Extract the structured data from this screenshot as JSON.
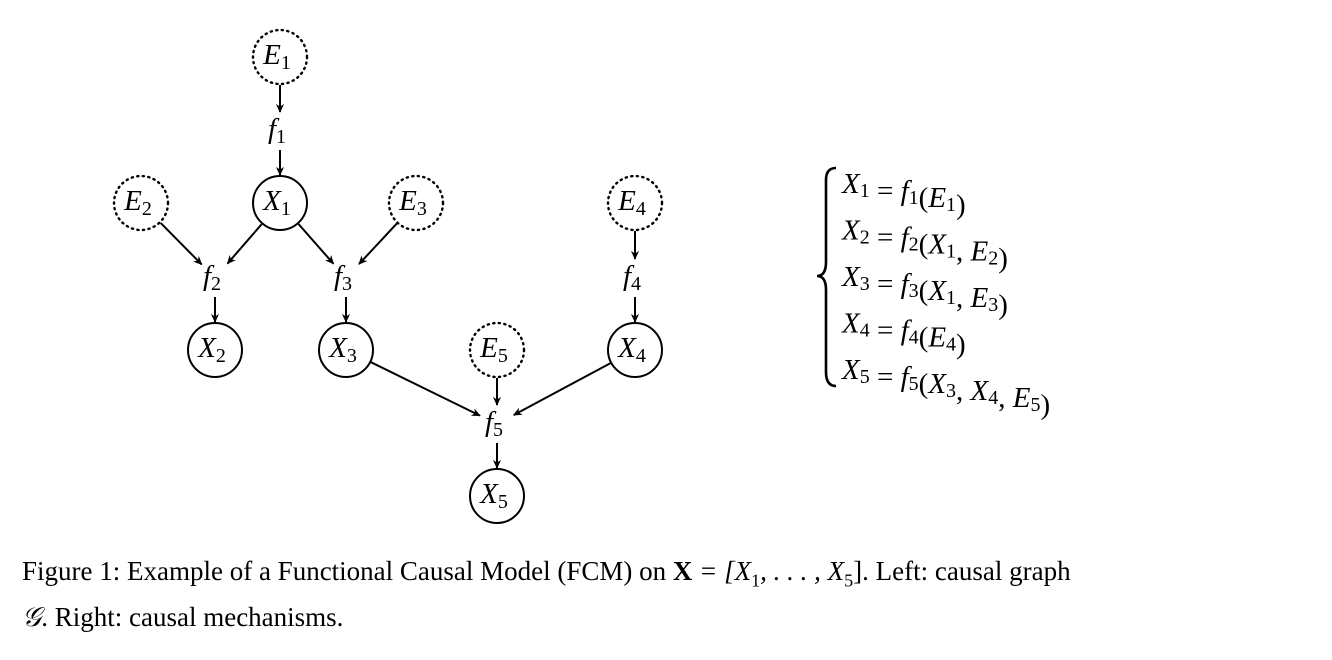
{
  "graph": {
    "nodes": [
      {
        "id": "E1",
        "letter": "E",
        "sub": "1",
        "kind": "noise"
      },
      {
        "id": "E2",
        "letter": "E",
        "sub": "2",
        "kind": "noise"
      },
      {
        "id": "E3",
        "letter": "E",
        "sub": "3",
        "kind": "noise"
      },
      {
        "id": "E4",
        "letter": "E",
        "sub": "4",
        "kind": "noise"
      },
      {
        "id": "E5",
        "letter": "E",
        "sub": "5",
        "kind": "noise"
      },
      {
        "id": "X1",
        "letter": "X",
        "sub": "1",
        "kind": "variable"
      },
      {
        "id": "X2",
        "letter": "X",
        "sub": "2",
        "kind": "variable"
      },
      {
        "id": "X3",
        "letter": "X",
        "sub": "3",
        "kind": "variable"
      },
      {
        "id": "X4",
        "letter": "X",
        "sub": "4",
        "kind": "variable"
      },
      {
        "id": "X5",
        "letter": "X",
        "sub": "5",
        "kind": "variable"
      },
      {
        "id": "f1",
        "letter": "f",
        "sub": "1",
        "kind": "function"
      },
      {
        "id": "f2",
        "letter": "f",
        "sub": "2",
        "kind": "function"
      },
      {
        "id": "f3",
        "letter": "f",
        "sub": "3",
        "kind": "function"
      },
      {
        "id": "f4",
        "letter": "f",
        "sub": "4",
        "kind": "function"
      },
      {
        "id": "f5",
        "letter": "f",
        "sub": "5",
        "kind": "function"
      }
    ],
    "edges": [
      [
        "E1",
        "f1"
      ],
      [
        "f1",
        "X1"
      ],
      [
        "E2",
        "f2"
      ],
      [
        "X1",
        "f2"
      ],
      [
        "f2",
        "X2"
      ],
      [
        "X1",
        "f3"
      ],
      [
        "E3",
        "f3"
      ],
      [
        "f3",
        "X3"
      ],
      [
        "E4",
        "f4"
      ],
      [
        "f4",
        "X4"
      ],
      [
        "X3",
        "f5"
      ],
      [
        "E5",
        "f5"
      ],
      [
        "X4",
        "f5"
      ],
      [
        "f5",
        "X5"
      ]
    ]
  },
  "equations": [
    {
      "lhs": "X1",
      "fn": "f1",
      "args": [
        "E1"
      ]
    },
    {
      "lhs": "X2",
      "fn": "f2",
      "args": [
        "X1",
        "E2"
      ]
    },
    {
      "lhs": "X3",
      "fn": "f3",
      "args": [
        "X1",
        "E3"
      ]
    },
    {
      "lhs": "X4",
      "fn": "f4",
      "args": [
        "E4"
      ]
    },
    {
      "lhs": "X5",
      "fn": "f5",
      "args": [
        "X3",
        "X4",
        "E5"
      ]
    }
  ],
  "caption": {
    "prefix": "Figure 1: Example of a Functional Causal Model (FCM) on ",
    "bold_symbol": "X",
    "math": " = [X",
    "sub1": "1",
    "ellipsis": ", . . . , X",
    "sub5": "5",
    "close": "]",
    "mid": ". Left: causal graph",
    "graph_symbol": "𝒢",
    "suffix": ". Right: causal mechanisms."
  }
}
